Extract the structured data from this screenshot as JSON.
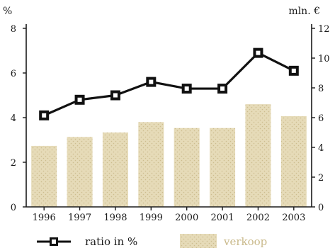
{
  "chart_data": {
    "type": "bar",
    "categories": [
      "1996",
      "1997",
      "1998",
      "1999",
      "2000",
      "2001",
      "2002",
      "2003"
    ],
    "left_axis": {
      "unit": "%",
      "ylim": [
        0,
        8
      ],
      "ticks": [
        "0",
        "2",
        "4",
        "6",
        "8"
      ]
    },
    "right_axis": {
      "unit": "mln. €",
      "ylim": [
        0,
        12
      ],
      "ticks": [
        "0",
        "2",
        "4",
        "6",
        "8",
        "10",
        "12"
      ]
    },
    "series": [
      {
        "name": "ratio in %",
        "type": "line",
        "axis": "left",
        "color": "#111111",
        "values": [
          4.1,
          4.8,
          5.0,
          5.6,
          5.3,
          5.3,
          6.9,
          6.1
        ]
      },
      {
        "name": "verkoop",
        "type": "bar",
        "axis": "right",
        "color": "#e6dbb8",
        "values": [
          4.1,
          4.7,
          5.0,
          5.7,
          5.3,
          5.3,
          6.9,
          6.1
        ]
      }
    ],
    "grid": false,
    "legend_position": "bottom"
  }
}
